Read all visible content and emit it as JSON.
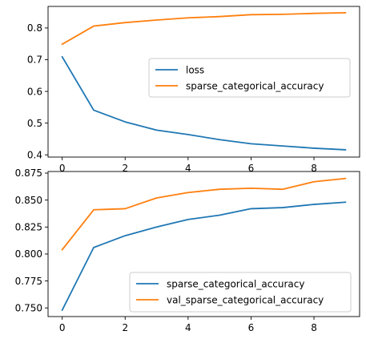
{
  "chart_data": [
    {
      "type": "line",
      "x": [
        0,
        1,
        2,
        3,
        4,
        5,
        6,
        7,
        8,
        9
      ],
      "xlim": [
        -0.45,
        9.45
      ],
      "ylim": [
        0.393,
        0.868
      ],
      "xticks": [
        0,
        2,
        4,
        6,
        8
      ],
      "yticks": [
        0.4,
        0.5,
        0.6,
        0.7,
        0.8
      ],
      "ytick_labels": [
        "0.4",
        "0.5",
        "0.6",
        "0.7",
        "0.8"
      ],
      "xtick_labels": [
        "0",
        "2",
        "4",
        "6",
        "8"
      ],
      "grid": false,
      "legend_position": "center-right",
      "series": [
        {
          "name": "loss",
          "color": "#1f77b4",
          "values": [
            0.709,
            0.541,
            0.504,
            0.478,
            0.464,
            0.448,
            0.435,
            0.428,
            0.421,
            0.416
          ]
        },
        {
          "name": "sparse_categorical_accuracy",
          "color": "#ff7f0e",
          "values": [
            0.749,
            0.806,
            0.817,
            0.825,
            0.832,
            0.836,
            0.842,
            0.843,
            0.846,
            0.848
          ]
        }
      ]
    },
    {
      "type": "line",
      "x": [
        0,
        1,
        2,
        3,
        4,
        5,
        6,
        7,
        8,
        9
      ],
      "xlim": [
        -0.45,
        9.45
      ],
      "ylim": [
        0.742,
        0.8765
      ],
      "xticks": [
        0,
        2,
        4,
        6,
        8
      ],
      "yticks": [
        0.75,
        0.775,
        0.8,
        0.825,
        0.85,
        0.875
      ],
      "ytick_labels": [
        "0.750",
        "0.775",
        "0.800",
        "0.825",
        "0.850",
        "0.875"
      ],
      "xtick_labels": [
        "0",
        "2",
        "4",
        "6",
        "8"
      ],
      "grid": false,
      "legend_position": "bottom-right",
      "series": [
        {
          "name": "sparse_categorical_accuracy",
          "color": "#1f77b4",
          "values": [
            0.748,
            0.806,
            0.817,
            0.825,
            0.832,
            0.836,
            0.842,
            0.843,
            0.846,
            0.848
          ]
        },
        {
          "name": "val_sparse_categorical_accuracy",
          "color": "#ff7f0e",
          "values": [
            0.804,
            0.841,
            0.842,
            0.852,
            0.857,
            0.86,
            0.861,
            0.86,
            0.867,
            0.87
          ]
        }
      ]
    }
  ]
}
